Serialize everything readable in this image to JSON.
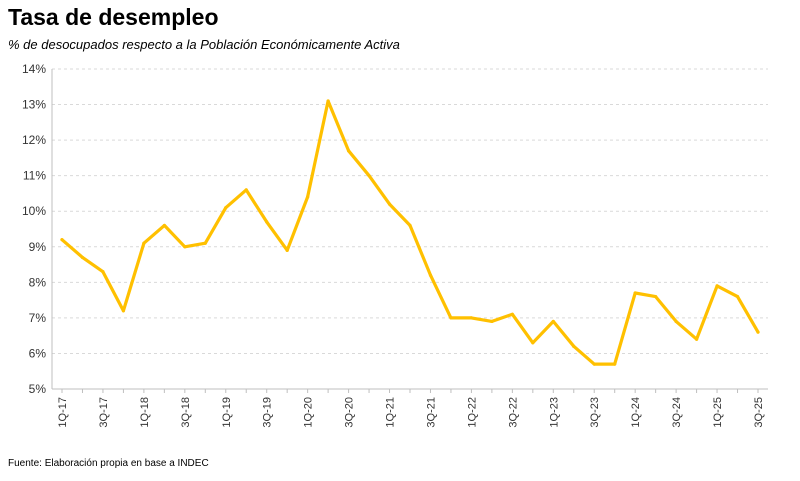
{
  "chart_data": {
    "type": "line",
    "title": "Tasa de desempleo",
    "subtitle": "% de desocupados respecto a la Población Económicamente Activa",
    "source": "Fuente: Elaboración propia en base a INDEC",
    "xlabel": "",
    "ylabel": "",
    "ylim": [
      5,
      14
    ],
    "yticks": [
      5,
      6,
      7,
      8,
      9,
      10,
      11,
      12,
      13,
      14
    ],
    "ytick_labels": [
      "5%",
      "6%",
      "7%",
      "8%",
      "9%",
      "10%",
      "11%",
      "12%",
      "13%",
      "14%"
    ],
    "grid": true,
    "legend": "none",
    "x": [
      "1Q-17",
      "2Q-17",
      "3Q-17",
      "4Q-17",
      "1Q-18",
      "2Q-18",
      "3Q-18",
      "4Q-18",
      "1Q-19",
      "2Q-19",
      "3Q-19",
      "4Q-19",
      "1Q-20",
      "2Q-20",
      "3Q-20",
      "4Q-20",
      "1Q-21",
      "2Q-21",
      "3Q-21",
      "4Q-21",
      "1Q-22",
      "2Q-22",
      "3Q-22",
      "4Q-22",
      "1Q-23",
      "2Q-23",
      "3Q-23",
      "4Q-23",
      "1Q-24",
      "2Q-24",
      "3Q-24",
      "4Q-24",
      "1Q-25",
      "2Q-25",
      "3Q-25"
    ],
    "xtick_labels": [
      "1Q-17",
      "3Q-17",
      "1Q-18",
      "3Q-18",
      "1Q-19",
      "3Q-19",
      "1Q-20",
      "3Q-20",
      "1Q-21",
      "3Q-21",
      "1Q-22",
      "3Q-22",
      "1Q-23",
      "3Q-23",
      "1Q-24",
      "3Q-24",
      "1Q-25",
      "3Q-25"
    ],
    "series": [
      {
        "name": "Tasa de desempleo",
        "color": "#FFC000",
        "values": [
          9.2,
          8.7,
          8.3,
          7.2,
          9.1,
          9.6,
          9.0,
          9.1,
          10.1,
          10.6,
          9.7,
          8.9,
          10.4,
          13.1,
          11.7,
          11.0,
          10.2,
          9.6,
          8.2,
          7.0,
          7.0,
          6.9,
          7.1,
          6.3,
          6.9,
          6.2,
          5.7,
          5.7,
          7.7,
          7.6,
          6.9,
          6.4,
          7.9,
          7.6,
          6.6
        ]
      }
    ]
  }
}
